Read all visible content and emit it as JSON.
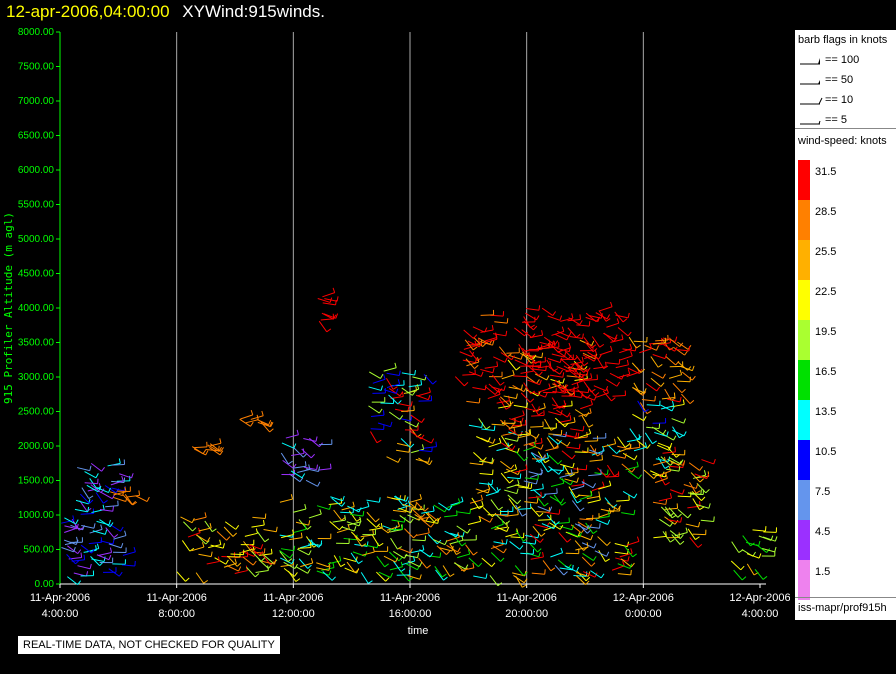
{
  "header": {
    "time": "12-apr-2006,04:00:00",
    "name": "XYWind:915winds."
  },
  "chart_data": {
    "type": "scatter",
    "ylabel": "915 Profiler Altitude (m agl)",
    "xlabel": "time",
    "ylim": [
      0,
      8000
    ],
    "yticks": [
      "0.00",
      "500.00",
      "1000.00",
      "1500.00",
      "2000.00",
      "2500.00",
      "3000.00",
      "3500.00",
      "4000.00",
      "4500.00",
      "5000.00",
      "5500.00",
      "6000.00",
      "6500.00",
      "7000.00",
      "7500.00",
      "8000.00"
    ],
    "xticks": [
      {
        "date": "11-Apr-2006",
        "time": "4:00:00",
        "hour": 0
      },
      {
        "date": "11-Apr-2006",
        "time": "8:00:00",
        "hour": 4
      },
      {
        "date": "11-Apr-2006",
        "time": "12:00:00",
        "hour": 8
      },
      {
        "date": "11-Apr-2006",
        "time": "16:00:00",
        "hour": 12
      },
      {
        "date": "11-Apr-2006",
        "time": "20:00:00",
        "hour": 16
      },
      {
        "date": "12-Apr-2006",
        "time": "0:00:00",
        "hour": 20
      },
      {
        "date": "12-Apr-2006",
        "time": "4:00:00",
        "hour": 24
      }
    ],
    "grid": "vertical",
    "clusters": [
      {
        "h": [
          0.0,
          2.2
        ],
        "alt": [
          100,
          1800
        ],
        "speeds": [
          3,
          8,
          10,
          13
        ]
      },
      {
        "h": [
          1.6,
          2.8
        ],
        "alt": [
          1250,
          1350
        ],
        "speeds": [
          27
        ]
      },
      {
        "h": [
          4.0,
          7.0
        ],
        "alt": [
          150,
          1000
        ],
        "speeds": [
          18,
          22,
          25,
          28,
          31
        ]
      },
      {
        "h": [
          4.5,
          5.2
        ],
        "alt": [
          1950,
          2050
        ],
        "speeds": [
          27
        ]
      },
      {
        "h": [
          6.0,
          7.0
        ],
        "alt": [
          2300,
          2400
        ],
        "speeds": [
          27
        ]
      },
      {
        "h": [
          7.5,
          9.0
        ],
        "alt": [
          1500,
          2150
        ],
        "speeds": [
          3,
          8,
          12
        ]
      },
      {
        "h": [
          7.5,
          11.5
        ],
        "alt": [
          100,
          1300
        ],
        "speeds": [
          13,
          17,
          20,
          22,
          25
        ]
      },
      {
        "h": [
          8.7,
          9.1
        ],
        "alt": [
          3800,
          4200
        ],
        "speeds": [
          31
        ]
      },
      {
        "h": [
          10.5,
          12.5
        ],
        "alt": [
          1800,
          3100
        ],
        "speeds": [
          10,
          14,
          20,
          25,
          31
        ]
      },
      {
        "h": [
          11.5,
          15.5
        ],
        "alt": [
          100,
          1200
        ],
        "speeds": [
          14,
          16,
          18,
          22,
          25,
          28
        ]
      },
      {
        "h": [
          13.5,
          15.0
        ],
        "alt": [
          2600,
          3900
        ],
        "speeds": [
          31,
          31,
          28
        ]
      },
      {
        "h": [
          14.0,
          15.5
        ],
        "alt": [
          1200,
          2400
        ],
        "speeds": [
          12,
          18,
          22,
          25
        ]
      },
      {
        "h": [
          15.0,
          18.0
        ],
        "alt": [
          2000,
          3600
        ],
        "speeds": [
          22,
          25,
          28,
          31,
          31
        ]
      },
      {
        "h": [
          15.5,
          19.5
        ],
        "alt": [
          2700,
          4000
        ],
        "speeds": [
          31
        ]
      },
      {
        "h": [
          15.5,
          19.5
        ],
        "alt": [
          100,
          2200
        ],
        "speeds": [
          8,
          12,
          17,
          22,
          25,
          28,
          31
        ]
      },
      {
        "h": [
          19.5,
          21.5
        ],
        "alt": [
          2600,
          3600
        ],
        "speeds": [
          31,
          28,
          25
        ]
      },
      {
        "h": [
          19.5,
          21.0
        ],
        "alt": [
          1800,
          2700
        ],
        "speeds": [
          10,
          14,
          18,
          22
        ]
      },
      {
        "h": [
          20.0,
          22.0
        ],
        "alt": [
          600,
          1900
        ],
        "speeds": [
          18,
          22,
          25,
          28,
          31
        ]
      },
      {
        "h": [
          23.0,
          24.3
        ],
        "alt": [
          150,
          800
        ],
        "speeds": [
          17,
          20,
          22,
          25
        ]
      }
    ]
  },
  "legend": {
    "flags_title": "barb flags in knots",
    "flags": [
      {
        "label": "== 100"
      },
      {
        "label": "== 50"
      },
      {
        "label": "== 10"
      },
      {
        "label": "== 5"
      }
    ],
    "speed_title": "wind-speed: knots",
    "scale": [
      {
        "label": "31.5",
        "color": "#ff0000"
      },
      {
        "label": "28.5",
        "color": "#ff8000"
      },
      {
        "label": "25.5",
        "color": "#ffb000"
      },
      {
        "label": "22.5",
        "color": "#ffff00"
      },
      {
        "label": "19.5",
        "color": "#aaff30"
      },
      {
        "label": "16.5",
        "color": "#00e000"
      },
      {
        "label": "13.5",
        "color": "#00ffff"
      },
      {
        "label": "10.5",
        "color": "#0000ff"
      },
      {
        "label": "7.5",
        "color": "#6495ed"
      },
      {
        "label": "4.5",
        "color": "#9b30ff"
      },
      {
        "label": "1.5",
        "color": "#ee82ee"
      }
    ],
    "source": "iss-mapr/prof915h"
  },
  "disclaimer": "REAL-TIME DATA, NOT CHECKED FOR QUALITY",
  "colors": {
    "axis": "#00ff00",
    "grid": "#aaaaaa",
    "title_time": "#ffff00"
  }
}
